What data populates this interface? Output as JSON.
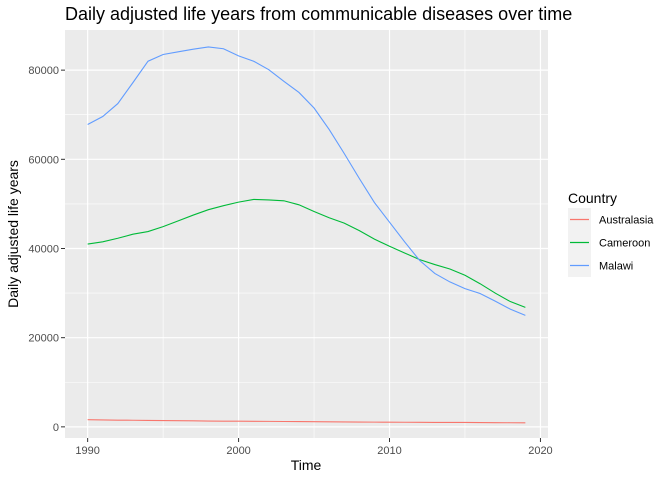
{
  "chart_data": {
    "type": "line",
    "title": "Daily adjusted life years from communicable diseases over time",
    "xlabel": "Time",
    "ylabel": "Daily adjusted life years",
    "xlim": [
      1988.5,
      2020.5
    ],
    "ylim": [
      -2500,
      89000
    ],
    "xticks": [
      1990,
      2000,
      2010,
      2020
    ],
    "yticks": [
      0,
      20000,
      40000,
      60000,
      80000
    ],
    "grid": true,
    "legend": {
      "title": "Country",
      "position": "right"
    },
    "x": [
      1990,
      1991,
      1992,
      1993,
      1994,
      1995,
      1996,
      1997,
      1998,
      1999,
      2000,
      2001,
      2002,
      2003,
      2004,
      2005,
      2006,
      2007,
      2008,
      2009,
      2010,
      2011,
      2012,
      2013,
      2014,
      2015,
      2016,
      2017,
      2018,
      2019
    ],
    "series": [
      {
        "name": "Australasia",
        "color": "#F8766D",
        "values": [
          1600,
          1550,
          1500,
          1480,
          1450,
          1400,
          1380,
          1350,
          1300,
          1280,
          1270,
          1250,
          1230,
          1200,
          1180,
          1150,
          1130,
          1100,
          1080,
          1060,
          1050,
          1030,
          1010,
          1000,
          990,
          980,
          960,
          940,
          920,
          900
        ]
      },
      {
        "name": "Cameroon",
        "color": "#00BA38",
        "values": [
          41000,
          41500,
          42300,
          43200,
          43800,
          44900,
          46200,
          47500,
          48700,
          49600,
          50400,
          51000,
          50900,
          50700,
          49800,
          48300,
          46900,
          45700,
          44000,
          42100,
          40500,
          39000,
          37500,
          36400,
          35400,
          34000,
          32100,
          30000,
          28100,
          26800
        ]
      },
      {
        "name": "Malawi",
        "color": "#619CFF",
        "values": [
          67800,
          69600,
          72500,
          77200,
          82000,
          83500,
          84100,
          84700,
          85200,
          84800,
          83200,
          82000,
          80100,
          77500,
          75000,
          71500,
          66700,
          61300,
          55700,
          50300,
          45900,
          41500,
          37300,
          34400,
          32500,
          31000,
          29900,
          28200,
          26400,
          25000
        ]
      }
    ]
  }
}
